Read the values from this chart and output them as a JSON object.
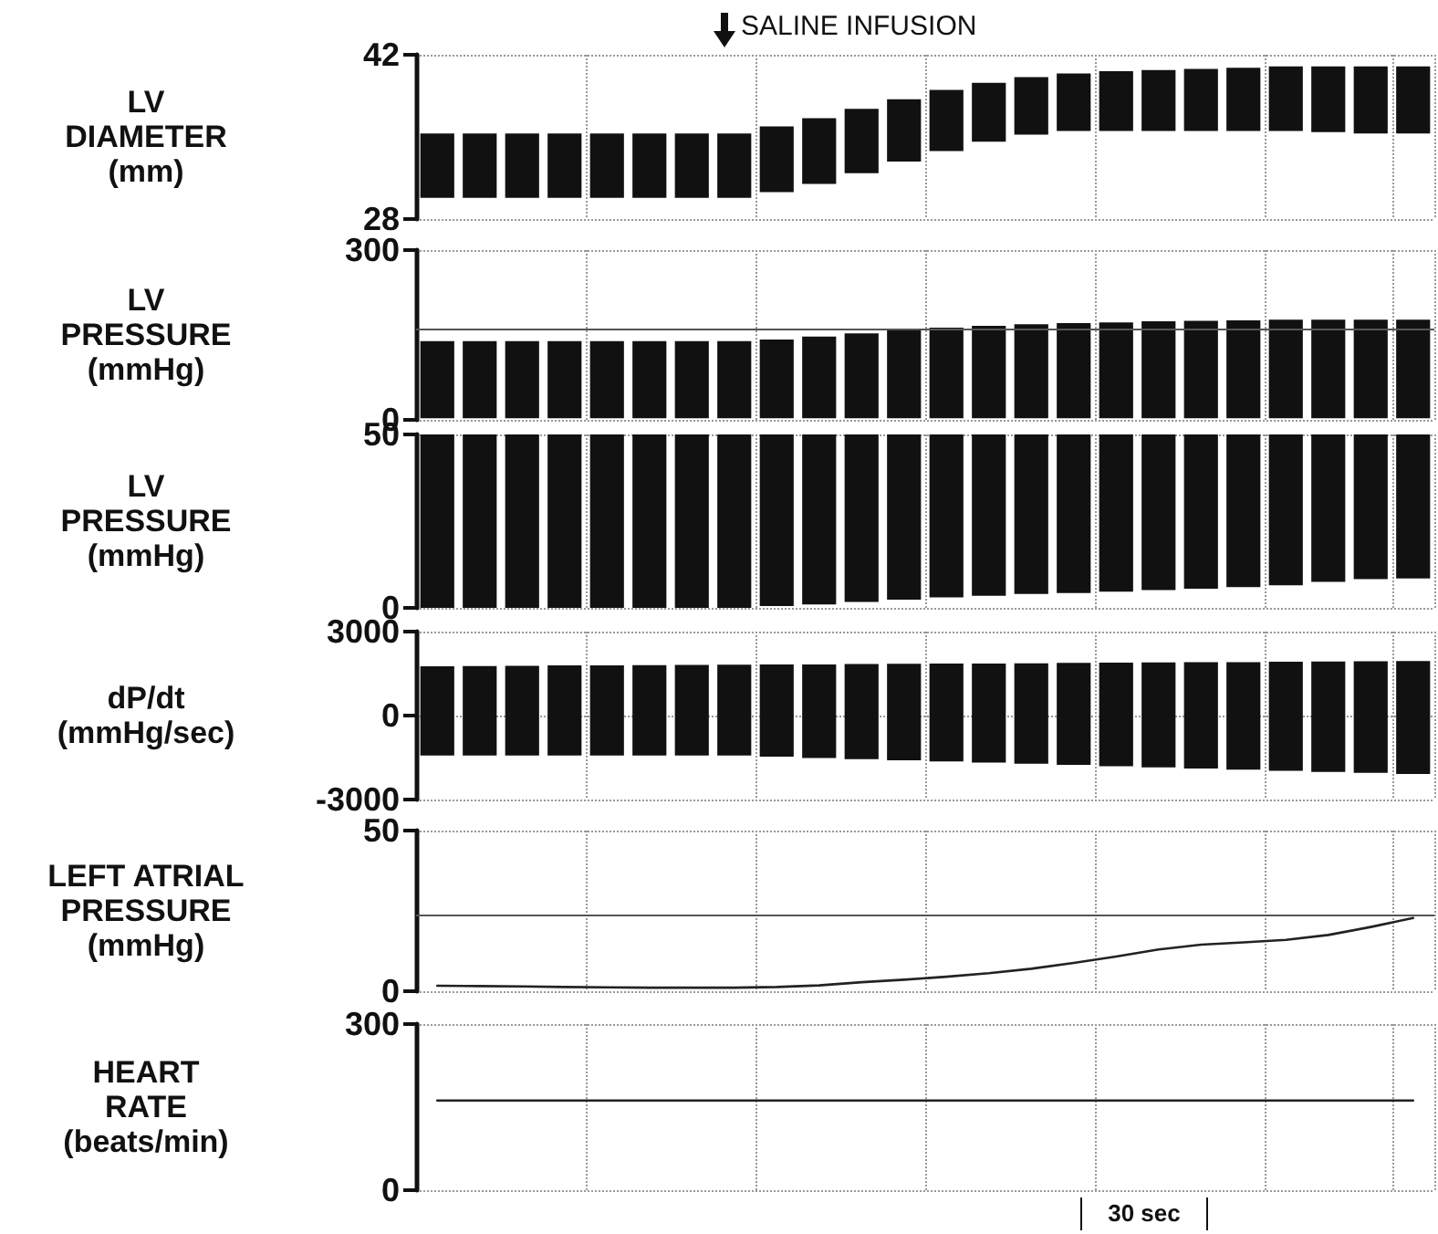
{
  "chart_data": [
    {
      "type": "bar",
      "ylabel": "LV\nDIAMETER\n(mm)",
      "annotations": [
        "SALINE INFUSION"
      ],
      "categories": [
        null,
        null,
        null,
        null,
        null,
        null,
        null,
        null,
        null,
        null,
        null,
        null,
        null,
        null,
        null,
        null,
        null,
        null,
        null,
        null,
        null,
        null,
        null,
        null
      ],
      "base": [
        29.8,
        29.8,
        29.8,
        29.8,
        29.8,
        29.8,
        29.8,
        29.8,
        30.3,
        31.0,
        31.9,
        32.9,
        33.8,
        34.6,
        35.2,
        35.5,
        35.5,
        35.5,
        35.5,
        35.5,
        35.5,
        35.4,
        35.3,
        35.3
      ],
      "values": [
        5.5,
        5.5,
        5.5,
        5.5,
        5.5,
        5.5,
        5.5,
        5.5,
        5.6,
        5.6,
        5.5,
        5.3,
        5.2,
        5.0,
        4.9,
        4.9,
        5.1,
        5.2,
        5.3,
        5.4,
        5.5,
        5.6,
        5.7,
        5.7
      ],
      "color": "#111111",
      "ylim": [
        28,
        42
      ],
      "yticks": [
        28,
        42
      ],
      "tick_labels": "y",
      "grid": true
    },
    {
      "type": "bar",
      "ylabel": "LV\nPRESSURE\n(mmHg)",
      "categories": [
        null,
        null,
        null,
        null,
        null,
        null,
        null,
        null,
        null,
        null,
        null,
        null,
        null,
        null,
        null,
        null,
        null,
        null,
        null,
        null,
        null,
        null,
        null,
        null
      ],
      "base": [
        3,
        3,
        3,
        3,
        3,
        3,
        3,
        3,
        3,
        3,
        3,
        3,
        3,
        3,
        3,
        3,
        3,
        3,
        3,
        3,
        3,
        3,
        3,
        3
      ],
      "values": [
        136,
        136,
        136,
        136,
        136,
        136,
        136,
        136,
        139,
        144,
        150,
        155,
        160,
        163,
        166,
        168,
        169,
        171,
        172,
        173,
        174,
        174,
        174,
        174
      ],
      "color": "#111111",
      "ylim": [
        0,
        300
      ],
      "yticks": [
        0,
        300
      ],
      "tick_labels": "y",
      "grid": true,
      "ref_lines": [
        {
          "axis": "y",
          "value": 161,
          "color": "#555555"
        }
      ]
    },
    {
      "type": "bar",
      "ylabel": "LV\nPRESSURE\n(mmHg)",
      "categories": [
        null,
        null,
        null,
        null,
        null,
        null,
        null,
        null,
        null,
        null,
        null,
        null,
        null,
        null,
        null,
        null,
        null,
        null,
        null,
        null,
        null,
        null,
        null,
        null
      ],
      "base": [
        0,
        0,
        0,
        0,
        0,
        0,
        0,
        0,
        0.5,
        1,
        1.7,
        2.4,
        3,
        3.5,
        4,
        4.3,
        4.7,
        5.1,
        5.5,
        6,
        6.5,
        7.5,
        8.3,
        8.5
      ],
      "values": [
        50,
        50,
        50,
        50,
        50,
        50,
        50,
        50,
        49.5,
        49,
        48.3,
        47.6,
        47,
        46.5,
        46,
        45.7,
        45.3,
        44.9,
        44.5,
        44,
        43.5,
        42.5,
        41.7,
        41.5
      ],
      "color": "#111111",
      "ylim": [
        0,
        50
      ],
      "yticks": [
        0,
        50
      ],
      "tick_labels": "y",
      "grid": true
    },
    {
      "type": "bar",
      "ylabel": "dP/dt\n(mmHg/sec)",
      "categories": [
        null,
        null,
        null,
        null,
        null,
        null,
        null,
        null,
        null,
        null,
        null,
        null,
        null,
        null,
        null,
        null,
        null,
        null,
        null,
        null,
        null,
        null,
        null,
        null
      ],
      "base": [
        -1430,
        -1430,
        -1430,
        -1430,
        -1430,
        -1430,
        -1430,
        -1430,
        -1470,
        -1520,
        -1560,
        -1600,
        -1640,
        -1680,
        -1720,
        -1760,
        -1810,
        -1850,
        -1890,
        -1930,
        -1970,
        -2010,
        -2050,
        -2090
      ],
      "values": [
        3190,
        3200,
        3210,
        3220,
        3220,
        3230,
        3240,
        3250,
        3300,
        3350,
        3400,
        3450,
        3500,
        3540,
        3590,
        3640,
        3700,
        3750,
        3800,
        3840,
        3890,
        3940,
        3990,
        4040
      ],
      "color": "#111111",
      "ylim": [
        -3000,
        3000
      ],
      "yticks": [
        -3000,
        0,
        3000
      ],
      "tick_labels": "y",
      "grid": true
    },
    {
      "type": "line",
      "ylabel": "LEFT ATRIAL\nPRESSURE\n(mmHg)",
      "categories": [
        null,
        null,
        null,
        null,
        null,
        null,
        null,
        null,
        null,
        null,
        null,
        null,
        null,
        null,
        null,
        null,
        null,
        null,
        null,
        null,
        null,
        null,
        null,
        null
      ],
      "values": [
        1.7,
        1.6,
        1.5,
        1.3,
        1.2,
        1.1,
        1.1,
        1.1,
        1.3,
        1.8,
        2.8,
        3.6,
        4.5,
        5.6,
        7.0,
        8.8,
        10.8,
        13.0,
        14.5,
        15.2,
        16.0,
        17.5,
        20.0,
        22.8
      ],
      "color": "#222222",
      "ylim": [
        0,
        50
      ],
      "yticks": [
        0,
        50
      ],
      "tick_labels": "y",
      "grid": true,
      "ref_lines": [
        {
          "axis": "y",
          "value": 24,
          "color": "#555555"
        }
      ]
    },
    {
      "type": "line",
      "ylabel": "HEART\nRATE\n(beats/min)",
      "annotations": [
        "30 sec"
      ],
      "categories": [
        null,
        null,
        null,
        null,
        null,
        null,
        null,
        null,
        null,
        null,
        null,
        null,
        null,
        null,
        null,
        null,
        null,
        null,
        null,
        null,
        null,
        null,
        null,
        null
      ],
      "values": [
        162,
        162,
        162,
        162,
        162,
        162,
        162,
        162,
        162,
        162,
        162,
        162,
        162,
        162,
        162,
        162,
        162,
        162,
        162,
        162,
        162,
        162,
        162,
        162
      ],
      "color": "#222222",
      "ylim": [
        0,
        300
      ],
      "yticks": [
        0,
        300
      ],
      "tick_labels": "y",
      "grid": true
    }
  ]
}
